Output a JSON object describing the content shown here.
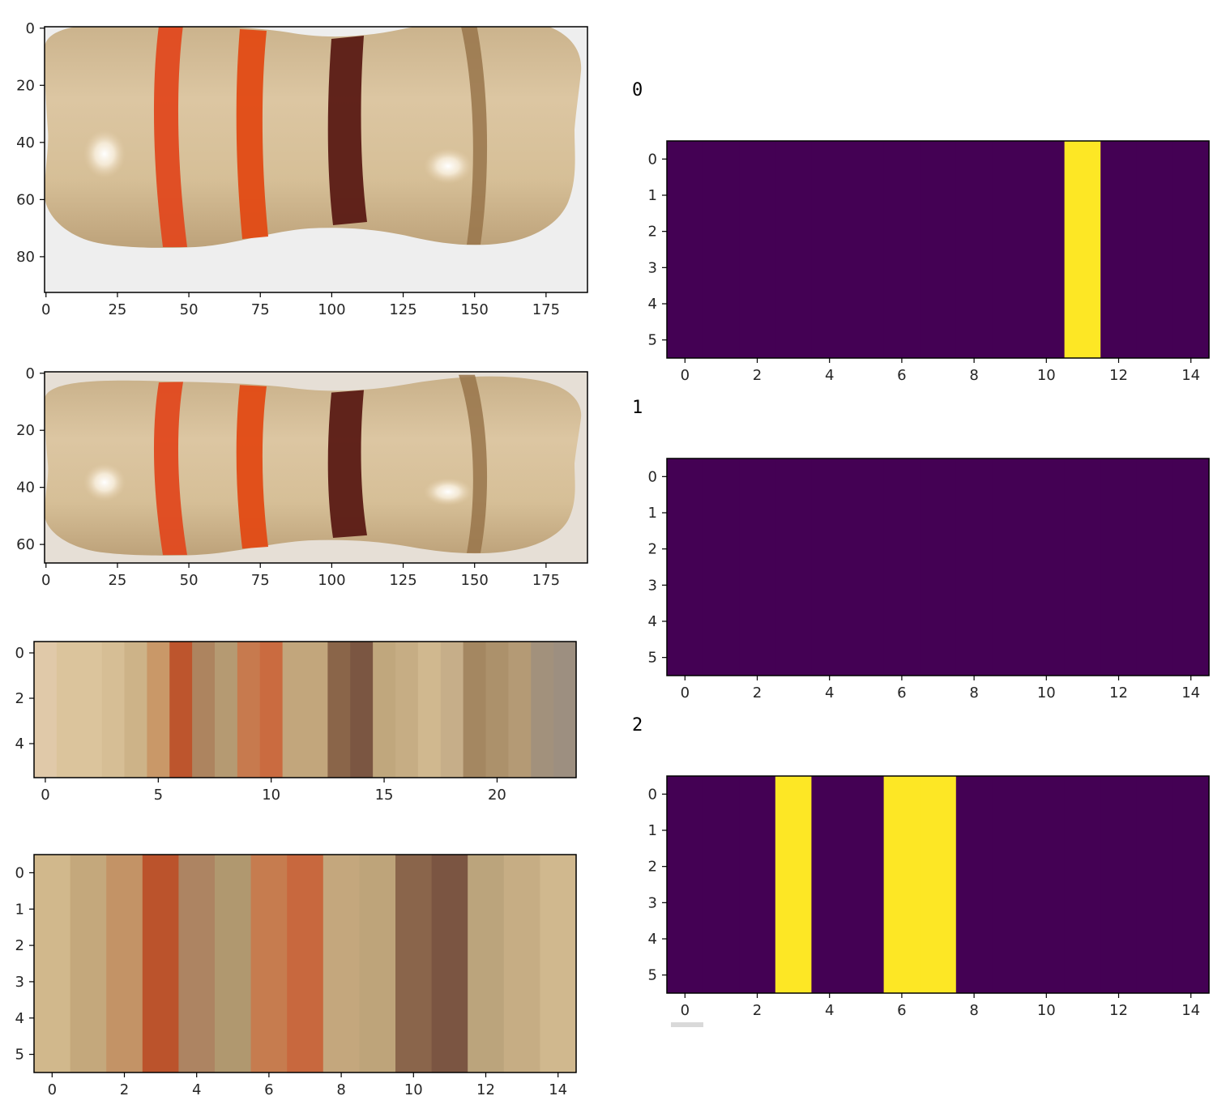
{
  "chart_data": [
    {
      "type": "heatmap",
      "content": "resistor-photo",
      "x_ticks": [
        0,
        25,
        50,
        75,
        100,
        125,
        150,
        175
      ],
      "y_ticks": [
        0,
        20,
        40,
        60,
        80
      ],
      "xlim": [
        -0.5,
        189.5
      ],
      "ylim": [
        92.5,
        -0.5
      ],
      "band_colors": [
        "#e0491f",
        "#e14a14",
        "#5a1a14",
        "#98744a"
      ]
    },
    {
      "type": "heatmap",
      "content": "resistor-photo-cropped",
      "x_ticks": [
        0,
        25,
        50,
        75,
        100,
        125,
        150,
        175
      ],
      "y_ticks": [
        0,
        20,
        40,
        60
      ],
      "xlim": [
        -0.5,
        189.5
      ],
      "ylim": [
        66.5,
        -0.5
      ],
      "band_colors": [
        "#e0491f",
        "#e14a14",
        "#5a1a14",
        "#98744a"
      ]
    },
    {
      "type": "heatmap",
      "content": "column-average-colors",
      "x_ticks": [
        0,
        5,
        10,
        15,
        20
      ],
      "y_ticks": [
        0,
        2,
        4
      ],
      "xlim": [
        -0.5,
        23.5
      ],
      "ylim": [
        5.5,
        -0.5
      ],
      "columns": [
        "#e0c9a9",
        "#dbc49c",
        "#dbc49c",
        "#d6be95",
        "#cdb388",
        "#c99868",
        "#bd552d",
        "#ad845f",
        "#b59a72",
        "#c77a4e",
        "#ca6b40",
        "#c2a67c",
        "#c2a67c",
        "#8a6549",
        "#7b5642",
        "#c0a77d",
        "#c6ad84",
        "#d0b88f",
        "#c6ae89",
        "#a48761",
        "#ac916b",
        "#b49a75",
        "#a2917c",
        "#9d8f80"
      ]
    },
    {
      "type": "heatmap",
      "content": "clustered-colors",
      "x_ticks": [
        0,
        2,
        4,
        6,
        8,
        10,
        12,
        14
      ],
      "y_ticks": [
        0,
        1,
        2,
        3,
        4,
        5
      ],
      "xlim": [
        -0.5,
        14.5
      ],
      "ylim": [
        5.5,
        -0.5
      ],
      "columns": [
        "#d1b88c",
        "#c4a87c",
        "#c39366",
        "#bb532c",
        "#ad8462",
        "#b0986f",
        "#c67c4f",
        "#c8683e",
        "#c4a77d",
        "#bea47a",
        "#8a654b",
        "#7b5542",
        "#bba47c",
        "#c6ad84",
        "#d0b88e"
      ]
    },
    {
      "type": "heatmap",
      "title": "0",
      "x_ticks": [
        0,
        2,
        4,
        6,
        8,
        10,
        12,
        14
      ],
      "y_ticks": [
        0,
        1,
        2,
        3,
        4,
        5
      ],
      "xlim": [
        -0.5,
        14.5
      ],
      "ylim": [
        5.5,
        -0.5
      ],
      "colormap": [
        "#440154",
        "#fde725"
      ],
      "values": [
        0,
        0,
        0,
        0,
        0,
        0,
        0,
        0,
        0,
        0,
        0,
        1,
        0,
        0,
        0
      ]
    },
    {
      "type": "heatmap",
      "title": "1",
      "x_ticks": [
        0,
        2,
        4,
        6,
        8,
        10,
        12,
        14
      ],
      "y_ticks": [
        0,
        1,
        2,
        3,
        4,
        5
      ],
      "xlim": [
        -0.5,
        14.5
      ],
      "ylim": [
        5.5,
        -0.5
      ],
      "colormap": [
        "#440154",
        "#fde725"
      ],
      "values": [
        0,
        0,
        0,
        0,
        0,
        0,
        0,
        0,
        0,
        0,
        0,
        0,
        0,
        0,
        0
      ]
    },
    {
      "type": "heatmap",
      "title": "2",
      "x_ticks": [
        0,
        2,
        4,
        6,
        8,
        10,
        12,
        14
      ],
      "y_ticks": [
        0,
        1,
        2,
        3,
        4,
        5
      ],
      "xlim": [
        -0.5,
        14.5
      ],
      "ylim": [
        5.5,
        -0.5
      ],
      "colormap": [
        "#440154",
        "#fde725"
      ],
      "values": [
        0,
        0,
        0,
        1,
        0,
        0,
        1,
        1,
        0,
        0,
        0,
        0,
        0,
        0,
        0
      ]
    }
  ]
}
